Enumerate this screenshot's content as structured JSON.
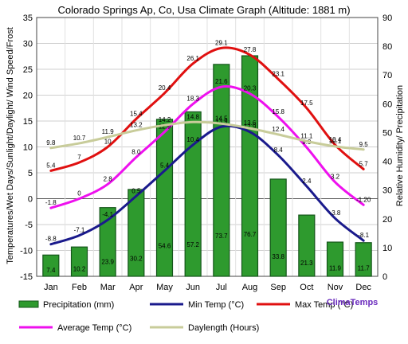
{
  "chart_data": {
    "type": "bar+line",
    "title": "Colorado Springs Ap, Co, Usa Climate Graph (Altitude: 1881 m)",
    "brand": "ClimaTemps",
    "categories": [
      "Jan",
      "Feb",
      "Mar",
      "Apr",
      "May",
      "Jun",
      "Jul",
      "Aug",
      "Sep",
      "Oct",
      "Nov",
      "Dec"
    ],
    "ylabel_left": "Temperatures/Wet Days/Sunlight/Daylight/ Wind Speed/Frost",
    "ylabel_right": "Relative Humidity/ Precipitation",
    "ylim_left": [
      -15,
      35
    ],
    "ylim_right": [
      0,
      90
    ],
    "yticks_left": [
      -15,
      -10,
      -5,
      0,
      5,
      10,
      15,
      20,
      25,
      30,
      35
    ],
    "yticks_right": [
      0,
      10,
      20,
      30,
      40,
      50,
      60,
      70,
      80,
      90
    ],
    "grid": true,
    "legend_position": "bottom",
    "precipitation": {
      "name": "Precipitation (mm)",
      "axis": "right",
      "color": "#2e9a2e",
      "values": [
        7.4,
        10.2,
        23.9,
        30.2,
        54.6,
        57.2,
        73.7,
        76.7,
        33.8,
        21.3,
        11.9,
        11.7
      ]
    },
    "series": [
      {
        "name": "Min Temp (°C)",
        "color": "#1a1a8c",
        "values": [
          -8.8,
          -7.1,
          -4.1,
          0.5,
          5.4,
          10.4,
          13.9,
          12.9,
          8.4,
          2.4,
          -3.8,
          -8.1
        ]
      },
      {
        "name": "Max Temp (°C)",
        "color": "#e01010",
        "values": [
          5.4,
          7.0,
          10.0,
          15.4,
          20.4,
          26.1,
          29.1,
          27.8,
          23.1,
          17.5,
          10.4,
          5.7
        ]
      },
      {
        "name": "Average Temp (°C)",
        "color": "#ee10ee",
        "values": [
          -1.8,
          0.0,
          2.8,
          8.0,
          12.9,
          18.3,
          21.6,
          20.3,
          15.8,
          9.9,
          3.2,
          -1.2
        ]
      },
      {
        "name": "Daylength (Hours)",
        "color": "#c8cc9a",
        "values": [
          9.8,
          10.7,
          11.9,
          13.2,
          14.2,
          14.8,
          14.5,
          13.6,
          12.4,
          11.1,
          10.1,
          9.5
        ]
      }
    ],
    "label_texts": {
      "Min Temp (°C)": [
        "-8.8",
        "-7.1",
        "-4.1",
        "0.5",
        "5.4",
        "10.4",
        "13.9",
        "12.9",
        "8.4",
        "2.4",
        "-3.8",
        "-8.1"
      ],
      "Max Temp (°C)": [
        "5.4",
        "7",
        "10",
        "15.4",
        "20.4",
        "26.1",
        "29.1",
        "27.8",
        "23.1",
        "17.5",
        "10.4",
        "5.7"
      ],
      "Average Temp (°C)": [
        "-1.8",
        "0",
        "2.8",
        "8.0",
        "12.9",
        "18.3",
        "21.6",
        "20.3",
        "15.8",
        "9.9",
        "3.2",
        "-1.20"
      ],
      "Daylength (Hours)": [
        "9.8",
        "10.7",
        "11.9",
        "13.2",
        "14.2",
        "14.8",
        "14.5",
        "13.6",
        "12.4",
        "11.1",
        "10.1",
        "9.5"
      ]
    }
  }
}
